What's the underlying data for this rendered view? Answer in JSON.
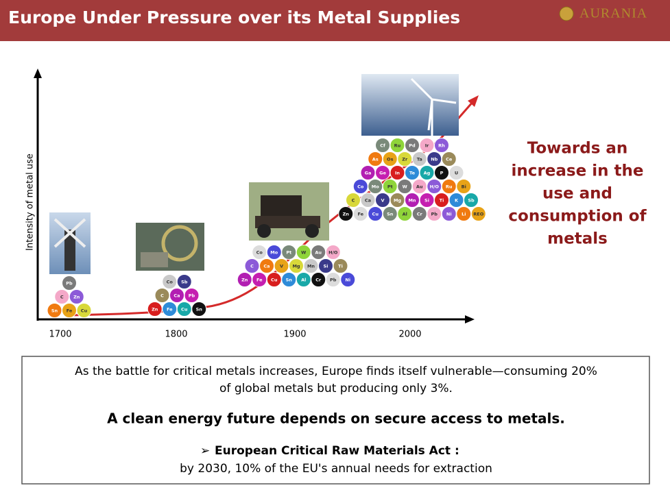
{
  "header": {
    "title": "Europe Under Pressure over its Metal Supplies",
    "logo": "AURANIA"
  },
  "diagram": {
    "y_axis_label": "Intensity of metal use",
    "x_labels": [
      "1700",
      "1800",
      "1900",
      "2000"
    ],
    "groups": [
      [
        [
          "Pb"
        ],
        [
          "C",
          "Zn"
        ],
        [
          "Sn",
          "Fe",
          "Cu"
        ]
      ],
      [
        [
          "Co",
          "Sb"
        ],
        [
          "C",
          "Ca",
          "Pb"
        ],
        [
          "Zn",
          "Fe",
          "Cu",
          "Sn"
        ]
      ],
      [
        [
          "Co",
          "Mo",
          "Pt",
          "W",
          "Au",
          "H/O"
        ],
        [
          "C",
          "Ca",
          "V",
          "Mg",
          "Mn",
          "Si",
          "Ti"
        ],
        [
          "Zn",
          "Fe",
          "Cu",
          "Sn",
          "Al",
          "Cr",
          "Pb",
          "Ni"
        ]
      ],
      [
        [
          "Cf",
          "Ru",
          "Pd",
          "Ir",
          "Rh"
        ],
        [
          "As",
          "Os",
          "Zr",
          "Ta",
          "Nb",
          "Ce"
        ],
        [
          "Ga",
          "Ge",
          "In",
          "Te",
          "Ag",
          "P",
          "U"
        ],
        [
          "Co",
          "Mo",
          "Pt",
          "W",
          "Au",
          "H/O",
          "Ru",
          "Bi"
        ],
        [
          "C",
          "Ca",
          "V",
          "Mg",
          "Mn",
          "Si",
          "Ti",
          "K",
          "Sb"
        ],
        [
          "Zn",
          "Fe",
          "Cu",
          "Sn",
          "Al",
          "Cr",
          "Pb",
          "Ni",
          "Li",
          "REO"
        ]
      ]
    ]
  },
  "callout": [
    "Towards an",
    "increase in the",
    "use and",
    "consumption of",
    "metals"
  ],
  "box": {
    "line1": "As the battle for critical metals increases, Europe finds itself vulnerable—consuming 20%",
    "line2": "of global metals but producing only 3%.",
    "headline": "A clean energy future depends on secure access to metals.",
    "bullet": "European Critical Raw Materials Act :",
    "sub": "by 2030, 10% of the EU's annual needs for extraction"
  }
}
